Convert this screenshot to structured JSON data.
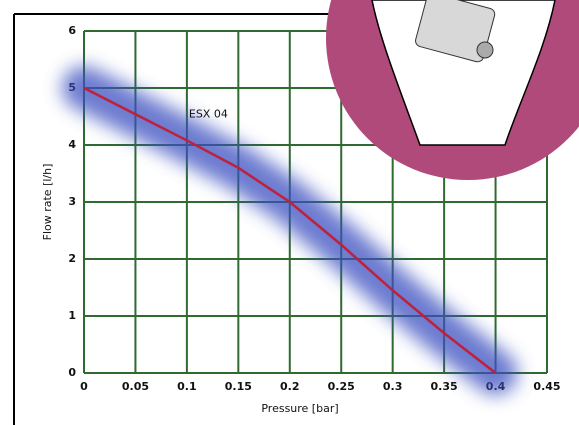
{
  "chart_data": {
    "type": "line",
    "x_label": "Pressure [bar]",
    "y_label": "Flow rate [l/h]",
    "annotation": "ESX 04",
    "series": [
      {
        "name": "ESX 04",
        "color": "#c0203a",
        "x": [
          0,
          0.1,
          0.15,
          0.2,
          0.25,
          0.3,
          0.35,
          0.4
        ],
        "values": [
          5,
          4.08,
          3.6,
          3.0,
          2.25,
          1.45,
          0.7,
          0
        ]
      }
    ],
    "band_color": "#3a4fc0",
    "xlim": [
      0,
      0.45
    ],
    "xticks": [
      0,
      0.05,
      0.1,
      0.15,
      0.2,
      0.25,
      0.3,
      0.35,
      0.4,
      0.45
    ],
    "ylim": [
      0,
      6
    ],
    "yticks": [
      0,
      1,
      2,
      3,
      4,
      5,
      6
    ],
    "grid": true,
    "grid_color": "#2f6a2f"
  }
}
